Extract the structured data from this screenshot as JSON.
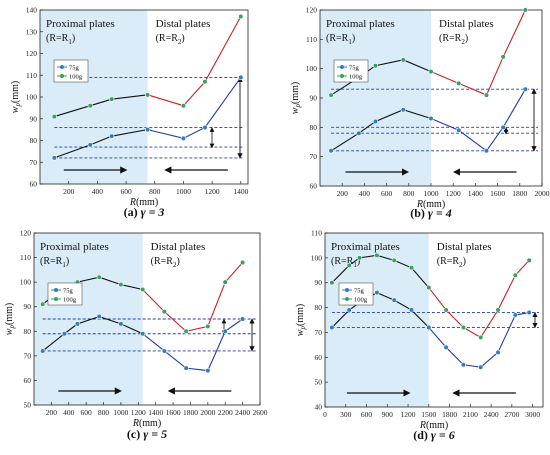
{
  "chart_data": [
    {
      "type": "line",
      "subplot_label": "(a)",
      "caption_gamma": "γ = 3",
      "region_left_label": "Proximal plates",
      "region_left_sub": "(R=R",
      "region_left_subscript": "1",
      "region_right_label": "Distal plates",
      "region_right_sub": "(R=R",
      "region_right_subscript": "2",
      "region_boundary": 750,
      "xlabel": "R(mm)",
      "ylabel": "w",
      "ylabel_sub": "p",
      "ylabel_unit": "(mm)",
      "xlim": [
        0,
        1450
      ],
      "ylim": [
        60,
        140
      ],
      "xticks": [
        200,
        400,
        600,
        800,
        1000,
        1200,
        1400
      ],
      "yticks": [
        60,
        70,
        80,
        90,
        100,
        110,
        120,
        130,
        140
      ],
      "grid": false,
      "legend_position": "upper-left",
      "series": [
        {
          "name": "75g",
          "color": "#1f3fa8",
          "marker_color": "#2f7fbf",
          "x": [
            100,
            350,
            500,
            750,
            1000,
            1150,
            1400
          ],
          "y": [
            72,
            78,
            82,
            85,
            81,
            86,
            109
          ]
        },
        {
          "name": "100g",
          "color": "#cc2222",
          "marker_color": "#3aa060",
          "x": [
            100,
            350,
            500,
            750,
            1000,
            1150,
            1400
          ],
          "y": [
            91,
            96,
            99,
            101,
            96,
            107,
            137
          ]
        }
      ],
      "reference_lines": [
        72,
        77,
        86,
        109
      ]
    },
    {
      "type": "line",
      "subplot_label": "(b)",
      "caption_gamma": "γ = 4",
      "region_left_label": "Proximal plates",
      "region_left_sub": "(R=R",
      "region_left_subscript": "1",
      "region_right_label": "Distal plates",
      "region_right_sub": "(R=R",
      "region_right_subscript": "2",
      "region_boundary": 1000,
      "xlabel": "R(mm)",
      "ylabel": "w",
      "ylabel_sub": "p",
      "ylabel_unit": "(mm)",
      "xlim": [
        0,
        2000
      ],
      "ylim": [
        60,
        120
      ],
      "xticks": [
        200,
        400,
        600,
        800,
        1000,
        1200,
        1400,
        1600,
        1800,
        2000
      ],
      "yticks": [
        60,
        70,
        80,
        90,
        100,
        110,
        120
      ],
      "grid": false,
      "legend_position": "upper-left",
      "series": [
        {
          "name": "75g",
          "color": "#1f3fa8",
          "marker_color": "#2f7fbf",
          "x": [
            100,
            350,
            500,
            750,
            1000,
            1250,
            1500,
            1650,
            1850
          ],
          "y": [
            72,
            78,
            82,
            86,
            83,
            79,
            72,
            80,
            93
          ]
        },
        {
          "name": "100g",
          "color": "#cc2222",
          "marker_color": "#3aa060",
          "x": [
            100,
            350,
            500,
            750,
            1000,
            1250,
            1500,
            1650,
            1850
          ],
          "y": [
            91,
            97,
            101,
            103,
            99,
            95,
            91,
            104,
            120
          ]
        }
      ],
      "reference_lines": [
        72,
        78,
        80,
        93
      ]
    },
    {
      "type": "line",
      "subplot_label": "(c)",
      "caption_gamma": "γ = 5",
      "region_left_label": "Proximal plates",
      "region_left_sub": "(R=R",
      "region_left_subscript": "1",
      "region_right_label": "Distal plates",
      "region_right_sub": "(R=R",
      "region_right_subscript": "2",
      "region_boundary": 1250,
      "xlabel": "R(mm)",
      "ylabel": "w",
      "ylabel_sub": "p",
      "ylabel_unit": "(mm)",
      "xlim": [
        0,
        2600
      ],
      "ylim": [
        50,
        120
      ],
      "xticks": [
        200,
        400,
        600,
        800,
        1000,
        1200,
        1400,
        1600,
        1800,
        2000,
        2200,
        2400,
        2600
      ],
      "yticks": [
        50,
        60,
        70,
        80,
        90,
        100,
        110,
        120
      ],
      "grid": false,
      "legend_position": "upper-left",
      "series": [
        {
          "name": "75g",
          "color": "#1f3fa8",
          "marker_color": "#2f7fbf",
          "x": [
            100,
            350,
            500,
            750,
            1000,
            1250,
            1500,
            1750,
            2000,
            2200,
            2400
          ],
          "y": [
            72,
            79,
            83,
            86,
            83,
            79,
            72,
            65,
            64,
            80,
            85
          ]
        },
        {
          "name": "100g",
          "color": "#cc2222",
          "marker_color": "#3aa060",
          "x": [
            100,
            350,
            500,
            750,
            1000,
            1250,
            1500,
            1750,
            2000,
            2200,
            2400
          ],
          "y": [
            91,
            98,
            100,
            102,
            99,
            97,
            88,
            80,
            82,
            100,
            108
          ]
        }
      ],
      "reference_lines": [
        72,
        79,
        85
      ]
    },
    {
      "type": "line",
      "subplot_label": "(d)",
      "caption_gamma": "γ = 6",
      "region_left_label": "Proximal plates",
      "region_left_sub": "(R=R",
      "region_left_subscript": "1",
      "region_right_label": "Distal plates",
      "region_right_sub": "(R=R",
      "region_right_subscript": "2",
      "region_boundary": 1500,
      "xlabel": "R(mm)",
      "ylabel": "w",
      "ylabel_sub": "p",
      "ylabel_unit": "(mm)",
      "xlim": [
        0,
        3150
      ],
      "ylim": [
        40,
        110
      ],
      "xticks": [
        0,
        300,
        600,
        900,
        1200,
        1500,
        1800,
        2100,
        2400,
        2700,
        3000
      ],
      "yticks": [
        40,
        50,
        60,
        70,
        80,
        90,
        100,
        110
      ],
      "grid": false,
      "legend_position": "upper-left",
      "series": [
        {
          "name": "75g",
          "color": "#1f3fa8",
          "marker_color": "#2f7fbf",
          "x": [
            100,
            350,
            500,
            750,
            1000,
            1250,
            1500,
            1750,
            2000,
            2250,
            2500,
            2750,
            2950
          ],
          "y": [
            72,
            79,
            82,
            86,
            83,
            79,
            72,
            64,
            57,
            56,
            62,
            77,
            78
          ]
        },
        {
          "name": "100g",
          "color": "#cc2222",
          "marker_color": "#3aa060",
          "x": [
            100,
            350,
            500,
            750,
            1000,
            1250,
            1500,
            1750,
            2000,
            2250,
            2500,
            2750,
            2950
          ],
          "y": [
            90,
            97,
            100,
            101,
            99,
            96,
            88,
            79,
            72,
            68,
            79,
            93,
            99
          ]
        }
      ],
      "reference_lines": [
        72,
        78
      ]
    }
  ]
}
